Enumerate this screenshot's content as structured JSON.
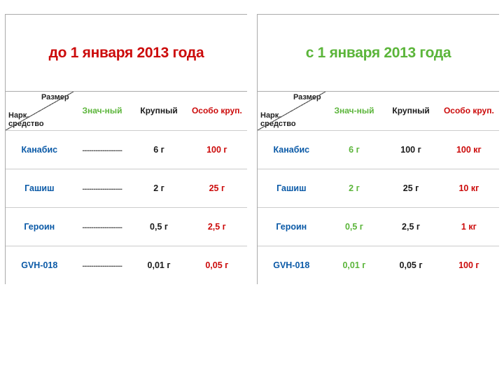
{
  "colors": {
    "red": "#cc0b0b",
    "green": "#5bb53a",
    "blue": "#0b5aa7",
    "black": "#1a1a1a"
  },
  "corner": {
    "top": "Размер",
    "bottom_l1": "Нарк.",
    "bottom_l2": "средство"
  },
  "headers": {
    "h1": "Знач-ный",
    "h2": "Крупный",
    "h3": "Особо круп."
  },
  "left": {
    "title": "до 1 января 2013 года",
    "dash": "------------------",
    "rows": [
      {
        "name": "Канабис",
        "c1_dash": true,
        "c2": "6 г",
        "c3": "100 г"
      },
      {
        "name": "Гашиш",
        "c1_dash": true,
        "c2": "2 г",
        "c3": "25 г"
      },
      {
        "name": "Героин",
        "c1_dash": true,
        "c2": "0,5 г",
        "c3": "2,5 г"
      },
      {
        "name": "GVH-018",
        "c1_dash": true,
        "c2": "0,01 г",
        "c3": "0,05 г"
      }
    ]
  },
  "right": {
    "title": "с 1 января 2013 года",
    "rows": [
      {
        "name": "Канабис",
        "c1": "6 г",
        "c2": "100 г",
        "c3": "100 кг"
      },
      {
        "name": "Гашиш",
        "c1": "2 г",
        "c2": "25 г",
        "c3": "10 кг"
      },
      {
        "name": "Героин",
        "c1": "0,5 г",
        "c2": "2,5 г",
        "c3": "1 кг"
      },
      {
        "name": "GVH-018",
        "c1": "0,01 г",
        "c2": "0,05 г",
        "c3": "100 г"
      }
    ]
  },
  "col_widths": {
    "c0": "28%",
    "c1": "24%",
    "c2": "23%",
    "c3": "25%"
  }
}
